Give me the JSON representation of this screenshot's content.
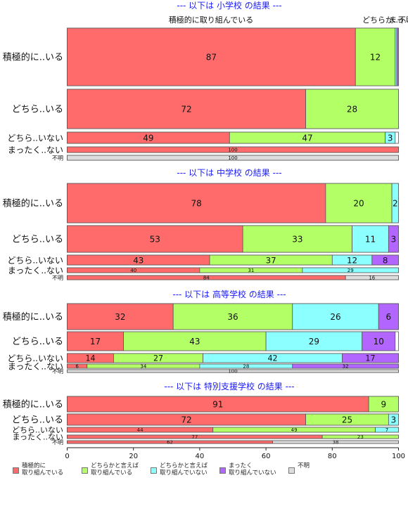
{
  "chart_data": {
    "type": "bar",
    "orientation": "horizontal-stacked-percent",
    "xlim": [
      0,
      100
    ],
    "x_ticks": [
      "0",
      "20",
      "40",
      "60",
      "80",
      "100"
    ],
    "legend_position": "bottom",
    "series": [
      {
        "name": "積極的に\n取り組んでいる",
        "color": "#ff6b6b"
      },
      {
        "name": "どちらかと言えば\n取り組んでいる",
        "color": "#b3ff66"
      },
      {
        "name": "どちらかと言えば\n取り組んでいない",
        "color": "#8cffff"
      },
      {
        "name": "まったく\n取り組んでいない",
        "color": "#b266ff"
      },
      {
        "name": "不明",
        "color": "#dddddd"
      }
    ],
    "panels": [
      {
        "title": "--- 以下は 小学校 の結果 ---",
        "top_labels": [
          "積極的に取り組んでいる",
          "どちらか...",
          "まっ...",
          "不明"
        ],
        "rows": [
          {
            "label": "積極的に..いる",
            "values": [
              87,
              12,
              0.5,
              0.5,
              0
            ],
            "labels": [
              "87",
              "12",
              "",
              "",
              ""
            ]
          },
          {
            "label": "どちら..いる",
            "values": [
              72,
              28,
              0,
              0,
              0
            ],
            "labels": [
              "72",
              "28",
              "",
              "",
              ""
            ]
          },
          {
            "label": "どちら..いない",
            "values": [
              49,
              47,
              3,
              0,
              0
            ],
            "labels": [
              "49",
              "47",
              "3",
              "",
              ""
            ]
          },
          {
            "label": "まったく..ない",
            "values": [
              100,
              0,
              0,
              0,
              0
            ],
            "labels": [
              "100",
              "",
              "",
              "",
              ""
            ]
          },
          {
            "label": "不明",
            "values": [
              0,
              0,
              0,
              0,
              100
            ],
            "labels": [
              "",
              "",
              "",
              "",
              "100"
            ]
          }
        ]
      },
      {
        "title": "--- 以下は 中学校 の結果 ---",
        "rows": [
          {
            "label": "積極的に..いる",
            "values": [
              78,
              20,
              2,
              0,
              0
            ],
            "labels": [
              "78",
              "20",
              "2",
              "",
              ""
            ]
          },
          {
            "label": "どちら..いる",
            "values": [
              53,
              33,
              11,
              3,
              0
            ],
            "labels": [
              "53",
              "33",
              "11",
              "3",
              ""
            ]
          },
          {
            "label": "どちら..いない",
            "values": [
              43,
              37,
              12,
              8,
              0
            ],
            "labels": [
              "43",
              "37",
              "12",
              "8",
              ""
            ]
          },
          {
            "label": "まったく..ない",
            "values": [
              40,
              31,
              29,
              0,
              0
            ],
            "labels": [
              "40",
              "31",
              "29",
              "",
              ""
            ]
          },
          {
            "label": "不明",
            "values": [
              84,
              0,
              0,
              0,
              16
            ],
            "labels": [
              "84",
              "",
              "",
              "",
              "16"
            ]
          }
        ]
      },
      {
        "title": "--- 以下は 高等学校 の結果 ---",
        "rows": [
          {
            "label": "積極的に..いる",
            "values": [
              32,
              36,
              26,
              6,
              0
            ],
            "labels": [
              "32",
              "36",
              "26",
              "6",
              ""
            ]
          },
          {
            "label": "どちら..いる",
            "values": [
              17,
              43,
              29,
              10,
              0
            ],
            "labels": [
              "17",
              "43",
              "29",
              "10",
              ""
            ]
          },
          {
            "label": "どちら..いない",
            "values": [
              14,
              27,
              42,
              17,
              0
            ],
            "labels": [
              "14",
              "27",
              "42",
              "17",
              ""
            ]
          },
          {
            "label": "まったく..ない",
            "values": [
              6,
              34,
              28,
              32,
              0
            ],
            "labels": [
              "6",
              "34",
              "28",
              "32",
              ""
            ]
          },
          {
            "label": "不明",
            "values": [
              0,
              0,
              0,
              0,
              100
            ],
            "labels": [
              "",
              "",
              "",
              "",
              "100"
            ]
          }
        ]
      },
      {
        "title": "--- 以下は 特別支援学校 の結果 ---",
        "rows": [
          {
            "label": "積極的に..いる",
            "values": [
              91,
              9,
              0,
              0,
              0
            ],
            "labels": [
              "91",
              "9",
              "",
              "",
              ""
            ]
          },
          {
            "label": "どちら..いる",
            "values": [
              72,
              25,
              3,
              0,
              0
            ],
            "labels": [
              "72",
              "25",
              "3",
              "",
              ""
            ]
          },
          {
            "label": "どちら..いない",
            "values": [
              44,
              49,
              7,
              0,
              0
            ],
            "labels": [
              "44",
              "49",
              "7",
              "",
              ""
            ]
          },
          {
            "label": "まったく..ない",
            "values": [
              77,
              23,
              0,
              0,
              0
            ],
            "labels": [
              "77",
              "23",
              "",
              "",
              ""
            ]
          },
          {
            "label": "不明",
            "values": [
              62,
              0,
              0,
              0,
              38
            ],
            "labels": [
              "62",
              "",
              "",
              "",
              "38"
            ]
          }
        ]
      }
    ]
  }
}
